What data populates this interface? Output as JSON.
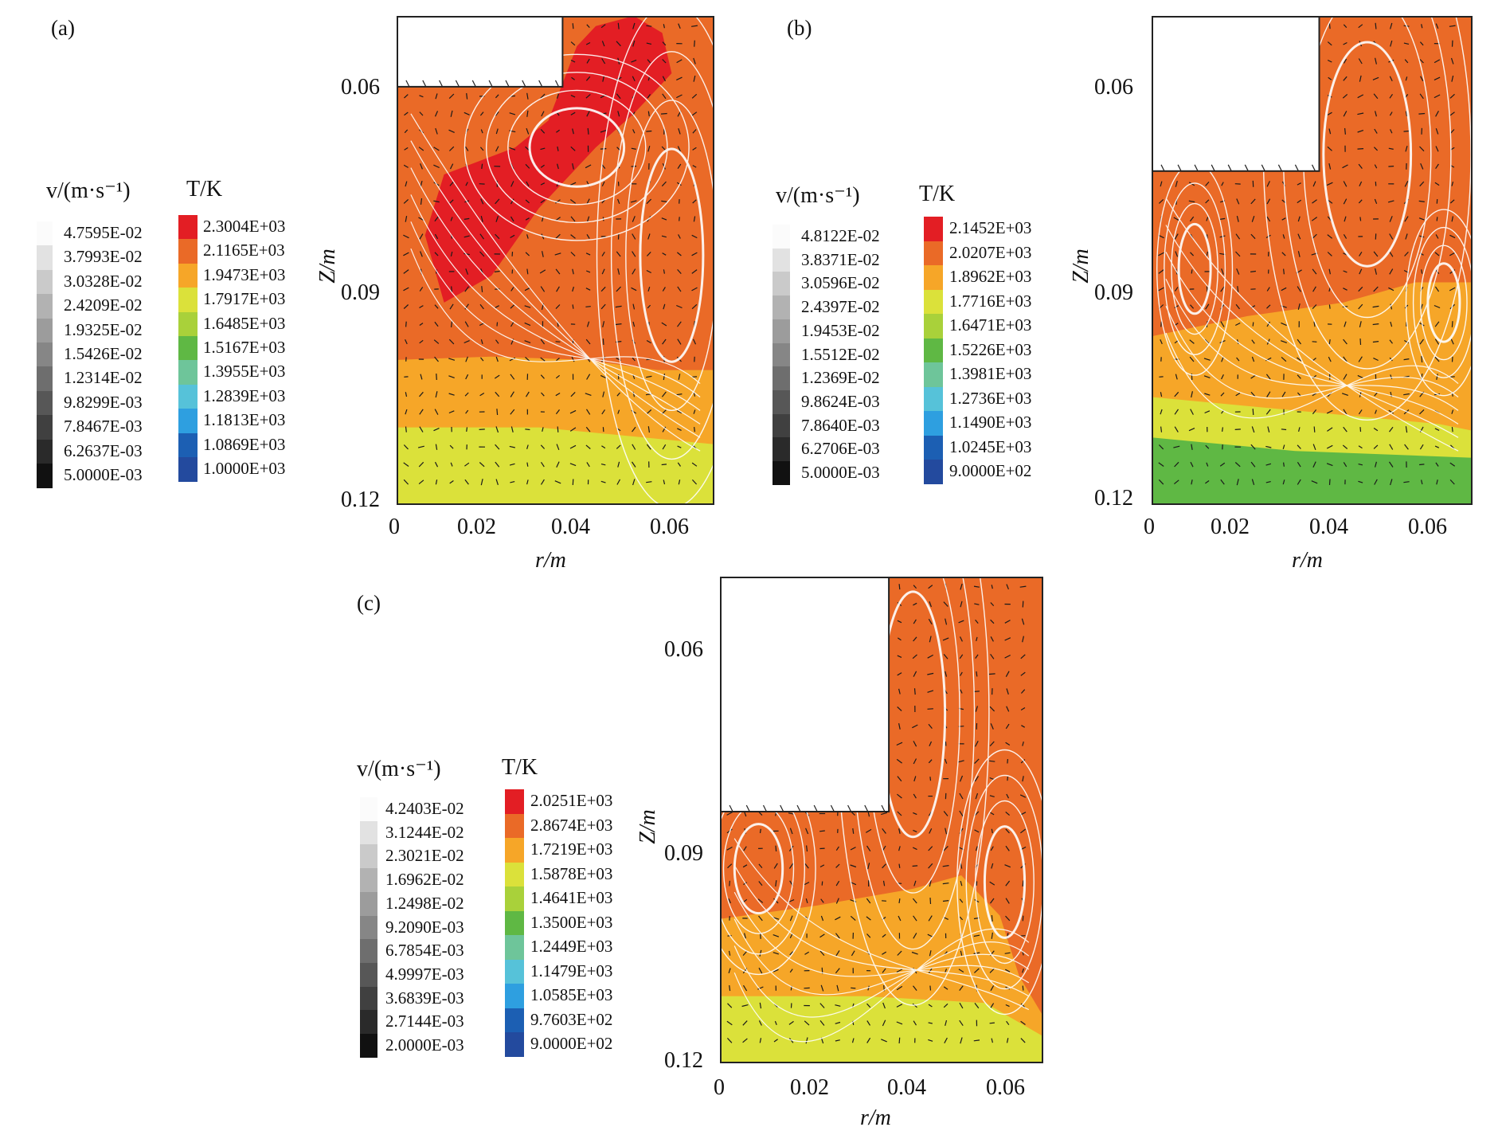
{
  "figure": {
    "panels": [
      {
        "id": "a",
        "label": "(a)",
        "v_title": "v/(m·s⁻¹)",
        "v_values": [
          "4.7595E-02",
          "3.7993E-02",
          "3.0328E-02",
          "2.4209E-02",
          "1.9325E-02",
          "1.5426E-02",
          "1.2314E-02",
          "9.8299E-03",
          "7.8467E-03",
          "6.2637E-03",
          "5.0000E-03"
        ],
        "t_title": "T/K",
        "t_values": [
          "2.3004E+03",
          "2.1165E+03",
          "1.9473E+03",
          "1.7917E+03",
          "1.6485E+03",
          "1.5167E+03",
          "1.3955E+03",
          "1.2839E+03",
          "1.1813E+03",
          "1.0869E+03",
          "1.0000E+03"
        ],
        "xlabel": "r/m",
        "ylabel": "Z/m",
        "xticks": [
          "0",
          "0.02",
          "0.04",
          "0.06"
        ],
        "yticks": [
          "0.06",
          "0.09",
          "0.12"
        ]
      },
      {
        "id": "b",
        "label": "(b)",
        "v_title": "v/(m·s⁻¹)",
        "v_values": [
          "4.8122E-02",
          "3.8371E-02",
          "3.0596E-02",
          "2.4397E-02",
          "1.9453E-02",
          "1.5512E-02",
          "1.2369E-02",
          "9.8624E-03",
          "7.8640E-03",
          "6.2706E-03",
          "5.0000E-03"
        ],
        "t_title": "T/K",
        "t_values": [
          "2.1452E+03",
          "2.0207E+03",
          "1.8962E+03",
          "1.7716E+03",
          "1.6471E+03",
          "1.5226E+03",
          "1.3981E+03",
          "1.2736E+03",
          "1.1490E+03",
          "1.0245E+03",
          "9.0000E+02"
        ],
        "xlabel": "r/m",
        "ylabel": "Z/m",
        "xticks": [
          "0",
          "0.02",
          "0.04",
          "0.06"
        ],
        "yticks": [
          "0.06",
          "0.09",
          "0.12"
        ]
      },
      {
        "id": "c",
        "label": "(c)",
        "v_title": "v/(m·s⁻¹)",
        "v_values": [
          "4.2403E-02",
          "3.1244E-02",
          "2.3021E-02",
          "1.6962E-02",
          "1.2498E-02",
          "9.2090E-03",
          "6.7854E-03",
          "4.9997E-03",
          "3.6839E-03",
          "2.7144E-03",
          "2.0000E-03"
        ],
        "t_title": "T/K",
        "t_values": [
          "2.0251E+03",
          "2.8674E+03",
          "1.7219E+03",
          "1.5878E+03",
          "1.4641E+03",
          "1.3500E+03",
          "1.2449E+03",
          "1.1479E+03",
          "1.0585E+03",
          "9.7603E+02",
          "9.0000E+02"
        ],
        "xlabel": "r/m",
        "ylabel": "Z/m",
        "xticks": [
          "0",
          "0.02",
          "0.04",
          "0.06"
        ],
        "yticks": [
          "0.06",
          "0.09",
          "0.12"
        ]
      }
    ],
    "colors": {
      "temperature_scale": [
        "#e31e24",
        "#ea6a27",
        "#f6a628",
        "#dbe13a",
        "#a9d13a",
        "#5fb844",
        "#6ec59a",
        "#56c2d9",
        "#2e9fe0",
        "#1c5fb3",
        "#234a9e"
      ],
      "velocity_scale": [
        "#fbfbfb",
        "#e2e2e2",
        "#cacaca",
        "#b2b2b2",
        "#9c9c9c",
        "#868686",
        "#6e6e6e",
        "#575757",
        "#404040",
        "#2a2a2a",
        "#111111"
      ],
      "streamline": "#ffffff",
      "vector": "#1a1a1a"
    }
  },
  "chart_data": [
    {
      "type": "heatmap",
      "panel": "a",
      "title": "(a)",
      "xlabel": "r/m",
      "ylabel": "Z/m",
      "xlim": [
        0,
        0.067
      ],
      "ylim": [
        0.12,
        0.0475
      ],
      "xticks": [
        0,
        0.02,
        0.04,
        0.06
      ],
      "yticks": [
        0.06,
        0.09,
        0.12
      ],
      "colorbar_T_K": [
        2300.4,
        2116.5,
        1947.3,
        1791.7,
        1648.5,
        1516.7,
        1395.5,
        1283.9,
        1181.3,
        1086.9,
        1000.0
      ],
      "colorbar_v_m_s": [
        0.047595,
        0.037993,
        0.030328,
        0.024209,
        0.019325,
        0.015426,
        0.012314,
        0.0098299,
        0.0078467,
        0.0062637,
        0.005
      ],
      "electrode": {
        "r_max": 0.035,
        "z_bottom": 0.058
      },
      "vortices": [
        {
          "r": 0.038,
          "z": 0.067,
          "type": "elongated"
        },
        {
          "r": 0.058,
          "z": 0.083,
          "type": "elongated"
        }
      ],
      "zones": [
        {
          "T_band": "2.3004E+03",
          "region": "upper-left under electrode edge"
        },
        {
          "T_band": "2.1165E+03",
          "region": "bulk, z 0.06-0.10"
        },
        {
          "T_band": "1.9473E+03",
          "region": "z 0.10-0.11"
        },
        {
          "T_band": "1.7917E+03",
          "region": "bottom, z 0.11-0.12"
        }
      ]
    },
    {
      "type": "heatmap",
      "panel": "b",
      "title": "(b)",
      "xlabel": "r/m",
      "ylabel": "Z/m",
      "xlim": [
        0,
        0.067
      ],
      "ylim": [
        0.12,
        0.0475
      ],
      "xticks": [
        0,
        0.02,
        0.04,
        0.06
      ],
      "yticks": [
        0.06,
        0.09,
        0.12
      ],
      "colorbar_T_K": [
        2145.2,
        2020.7,
        1896.2,
        1771.6,
        1647.1,
        1522.6,
        1398.1,
        1273.6,
        1149.0,
        1024.5,
        900.0
      ],
      "colorbar_v_m_s": [
        0.048122,
        0.038371,
        0.030596,
        0.024397,
        0.019453,
        0.015512,
        0.012369,
        0.0098624,
        0.007864,
        0.0062706,
        0.005
      ],
      "electrode": {
        "r_max": 0.035,
        "z_bottom": 0.0705
      },
      "vortices": [
        {
          "r": 0.009,
          "z": 0.085,
          "type": "elongated"
        },
        {
          "r": 0.045,
          "z": 0.068,
          "type": "elongated"
        },
        {
          "r": 0.061,
          "z": 0.09,
          "type": "elongated"
        }
      ],
      "zones": [
        {
          "T_band": "2.0207E+03",
          "region": "upper bulk, z 0.048-0.095"
        },
        {
          "T_band": "1.8962E+03",
          "region": "z 0.095-0.10"
        },
        {
          "T_band": "1.7716E+03",
          "region": "z 0.10-0.11"
        },
        {
          "T_band": "1.5226E+03",
          "region": "bottom, z 0.11-0.12"
        }
      ]
    },
    {
      "type": "heatmap",
      "panel": "c",
      "title": "(c)",
      "xlabel": "r/m",
      "ylabel": "Z/m",
      "xlim": [
        0,
        0.067
      ],
      "ylim": [
        0.12,
        0.0475
      ],
      "xticks": [
        0,
        0.02,
        0.04,
        0.06
      ],
      "yticks": [
        0.06,
        0.09,
        0.12
      ],
      "colorbar_T_K": [
        2025.1,
        2867.4,
        1721.9,
        1587.8,
        1464.1,
        1350.0,
        1244.9,
        1147.9,
        1058.5,
        976.03,
        900.0
      ],
      "colorbar_v_m_s": [
        0.042403,
        0.031244,
        0.023021,
        0.016962,
        0.012498,
        0.009209,
        0.0067854,
        0.0049997,
        0.0036839,
        0.0027144,
        0.002
      ],
      "electrode": {
        "r_max": 0.035,
        "z_bottom": 0.0825
      },
      "vortices": [
        {
          "r": 0.008,
          "z": 0.091,
          "type": "elongated"
        },
        {
          "r": 0.04,
          "z": 0.068,
          "type": "elongated"
        },
        {
          "r": 0.059,
          "z": 0.093,
          "type": "elongated"
        }
      ],
      "zones": [
        {
          "T_band": "2.8674E+03",
          "region": "upper bulk, z 0.048-0.098"
        },
        {
          "T_band": "1.7219E+03",
          "region": "z 0.098-0.11"
        },
        {
          "T_band": "1.5878E+03",
          "region": "bottom, z 0.11-0.12"
        }
      ]
    }
  ]
}
